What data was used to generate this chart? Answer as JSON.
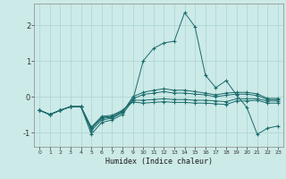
{
  "xlabel": "Humidex (Indice chaleur)",
  "background_color": "#cceae8",
  "line_color": "#1a6b6b",
  "grid_color": "#aad4d0",
  "xlim": [
    -0.5,
    23.5
  ],
  "ylim": [
    -1.4,
    2.6
  ],
  "yticks": [
    -1,
    0,
    1,
    2
  ],
  "xticks": [
    0,
    1,
    2,
    3,
    4,
    5,
    6,
    7,
    8,
    9,
    10,
    11,
    12,
    13,
    14,
    15,
    16,
    17,
    18,
    19,
    20,
    21,
    22,
    23
  ],
  "lines": [
    {
      "x": [
        0,
        1,
        2,
        3,
        4,
        5,
        6,
        7,
        8,
        9,
        10,
        11,
        12,
        13,
        14,
        15,
        16,
        17,
        18,
        19,
        20,
        21,
        22,
        23
      ],
      "y": [
        -0.38,
        -0.5,
        -0.38,
        -0.28,
        -0.28,
        -1.05,
        -0.72,
        -0.65,
        -0.5,
        -0.1,
        1.0,
        1.35,
        1.5,
        1.55,
        2.35,
        1.95,
        0.6,
        0.25,
        0.45,
        0.05,
        -0.3,
        -1.05,
        -0.88,
        -0.82
      ]
    },
    {
      "x": [
        0,
        1,
        2,
        3,
        4,
        5,
        6,
        7,
        8,
        9,
        10,
        11,
        12,
        13,
        14,
        15,
        16,
        17,
        18,
        19,
        20,
        21,
        22,
        23
      ],
      "y": [
        -0.38,
        -0.5,
        -0.38,
        -0.28,
        -0.28,
        -0.95,
        -0.65,
        -0.6,
        -0.45,
        0.0,
        0.12,
        0.18,
        0.22,
        0.18,
        0.18,
        0.14,
        0.1,
        0.05,
        0.1,
        0.12,
        0.12,
        0.08,
        -0.05,
        -0.05
      ]
    },
    {
      "x": [
        0,
        1,
        2,
        3,
        4,
        5,
        6,
        7,
        8,
        9,
        10,
        11,
        12,
        13,
        14,
        15,
        16,
        17,
        18,
        19,
        20,
        21,
        22,
        23
      ],
      "y": [
        -0.38,
        -0.5,
        -0.38,
        -0.28,
        -0.28,
        -0.9,
        -0.6,
        -0.58,
        -0.42,
        -0.06,
        0.06,
        0.1,
        0.14,
        0.1,
        0.1,
        0.07,
        0.05,
        0.0,
        0.04,
        0.07,
        0.07,
        0.03,
        -0.08,
        -0.08
      ]
    },
    {
      "x": [
        0,
        1,
        2,
        3,
        4,
        5,
        6,
        7,
        8,
        9,
        10,
        11,
        12,
        13,
        14,
        15,
        16,
        17,
        18,
        19,
        20,
        21,
        22,
        23
      ],
      "y": [
        -0.38,
        -0.5,
        -0.38,
        -0.28,
        -0.28,
        -0.88,
        -0.58,
        -0.55,
        -0.4,
        -0.1,
        -0.1,
        -0.08,
        -0.06,
        -0.08,
        -0.08,
        -0.1,
        -0.1,
        -0.12,
        -0.14,
        -0.06,
        -0.06,
        -0.06,
        -0.12,
        -0.12
      ]
    },
    {
      "x": [
        0,
        1,
        2,
        3,
        4,
        5,
        6,
        7,
        8,
        9,
        10,
        11,
        12,
        13,
        14,
        15,
        16,
        17,
        18,
        19,
        20,
        21,
        22,
        23
      ],
      "y": [
        -0.38,
        -0.5,
        -0.38,
        -0.28,
        -0.28,
        -0.85,
        -0.55,
        -0.52,
        -0.38,
        -0.15,
        -0.18,
        -0.16,
        -0.14,
        -0.16,
        -0.16,
        -0.18,
        -0.18,
        -0.2,
        -0.22,
        -0.12,
        -0.12,
        -0.1,
        -0.18,
        -0.18
      ]
    }
  ]
}
